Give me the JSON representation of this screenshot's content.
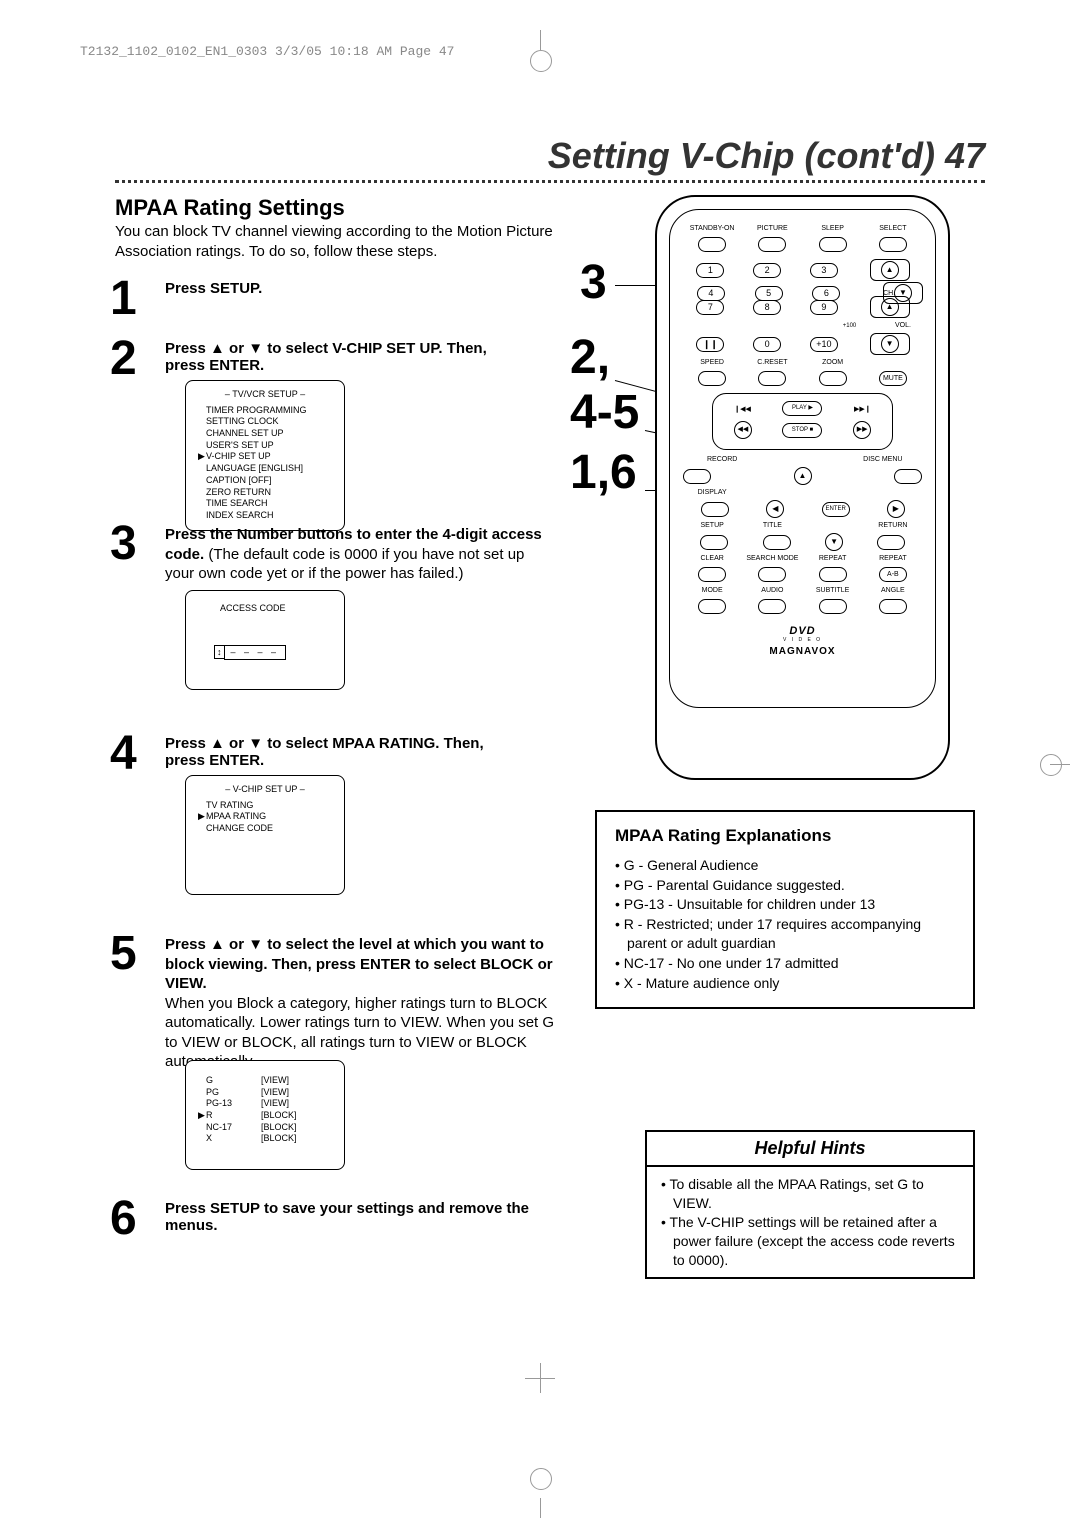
{
  "header_text": "T2132_1102_0102_EN1_0303  3/3/05  10:18 AM  Page 47",
  "page_title": "Setting V-Chip (cont'd)  47",
  "section_heading": "MPAA Rating Settings",
  "section_intro": "You can block TV channel viewing according to the Motion Picture Association ratings. To do so, follow these steps.",
  "steps": {
    "s1": {
      "num": "1",
      "text": "Press SETUP."
    },
    "s2": {
      "num": "2",
      "text": "Press ▲ or ▼ to select V-CHIP SET UP. Then, press ENTER."
    },
    "s3": {
      "num": "3",
      "bold": "Press the Number buttons to enter the 4-digit access code.",
      "rest": " (The default code is 0000 if you have not set up your own code yet or if the power has failed.)"
    },
    "s4": {
      "num": "4",
      "text": "Press ▲ or ▼ to select MPAA RATING. Then, press ENTER."
    },
    "s5": {
      "num": "5",
      "bold": "Press ▲ or ▼ to select the level at which you want to block viewing. Then, press ENTER to select BLOCK or VIEW.",
      "rest": "\nWhen you Block a category, higher ratings turn to BLOCK automatically. Lower ratings turn to VIEW. When you set G to VIEW or BLOCK, all ratings turn to VIEW or BLOCK automatically."
    },
    "s6": {
      "num": "6",
      "text": "Press SETUP to save your settings and remove the menus."
    }
  },
  "menu1": {
    "header": "– TV/VCR SETUP –",
    "items": [
      "TIMER PROGRAMMING",
      "SETTING CLOCK",
      "CHANNEL SET UP",
      "USER'S SET UP",
      "V-CHIP SET UP",
      "LANGUAGE  [ENGLISH]",
      "CAPTION   [OFF]",
      "ZERO RETURN",
      "TIME SEARCH",
      "INDEX SEARCH"
    ],
    "selected_index": 4
  },
  "menu2": {
    "header": "ACCESS CODE",
    "code": "– – – –"
  },
  "menu3": {
    "header": "– V-CHIP SET UP –",
    "items": [
      "TV RATING",
      "MPAA RATING",
      "CHANGE CODE"
    ],
    "selected_index": 1
  },
  "menu4": {
    "items": [
      {
        "label": "G",
        "status": "[VIEW]"
      },
      {
        "label": "PG",
        "status": "[VIEW]"
      },
      {
        "label": "PG-13",
        "status": "[VIEW]"
      },
      {
        "label": "R",
        "status": "[BLOCK]"
      },
      {
        "label": "NC-17",
        "status": "[BLOCK]"
      },
      {
        "label": "X",
        "status": "[BLOCK]"
      }
    ],
    "selected_index": 3
  },
  "remote": {
    "top_labels": [
      "STANDBY-ON",
      "PICTURE",
      "SLEEP",
      "SELECT"
    ],
    "num1": "1",
    "num2": "2",
    "num3": "3",
    "num4": "4",
    "num5": "5",
    "num6": "6",
    "num7": "7",
    "num8": "8",
    "num9": "9",
    "pause": "❙❙",
    "num0": "0",
    "plus10": "+10",
    "plus100": "+100",
    "ch": "CH.",
    "vol": "VOL.",
    "row_speed": [
      "SPEED",
      "C.RESET",
      "ZOOM"
    ],
    "mute": "MUTE",
    "prev": "❙◀◀",
    "play": "PLAY",
    "next": "▶▶❙",
    "rew": "◀◀",
    "stop": "STOP",
    "ff": "▶▶",
    "record": "RECORD",
    "disc_menu": "DISC MENU",
    "display": "DISPLAY",
    "enter": "ENTER",
    "setup": "SETUP",
    "title": "TITLE",
    "return": "RETURN",
    "row_clear": [
      "CLEAR",
      "SEARCH MODE",
      "REPEAT",
      "REPEAT"
    ],
    "ab": "A-B",
    "row_mode": [
      "MODE",
      "AUDIO",
      "SUBTITLE",
      "ANGLE"
    ],
    "dvd_logo": "DVD",
    "video_text": "V I D E O",
    "brand": "MAGNAVOX"
  },
  "callouts": {
    "c3": "3",
    "c2": "2,",
    "c45": "4-5",
    "c16": "1,6"
  },
  "mpaa_box": {
    "heading": "MPAA Rating Explanations",
    "items": [
      "• G - General Audience",
      "• PG - Parental Guidance suggested.",
      "• PG-13 - Unsuitable for children under 13",
      "• R - Restricted; under 17 requires accompanying parent or adult guardian",
      "• NC-17 - No one under 17 admitted",
      "• X - Mature audience only"
    ]
  },
  "hints_box": {
    "heading": "Helpful Hints",
    "items": [
      "• To disable all the MPAA Ratings, set G to VIEW.",
      "• The V-CHIP settings will be retained after a power failure (except the access code reverts to 0000)."
    ]
  }
}
